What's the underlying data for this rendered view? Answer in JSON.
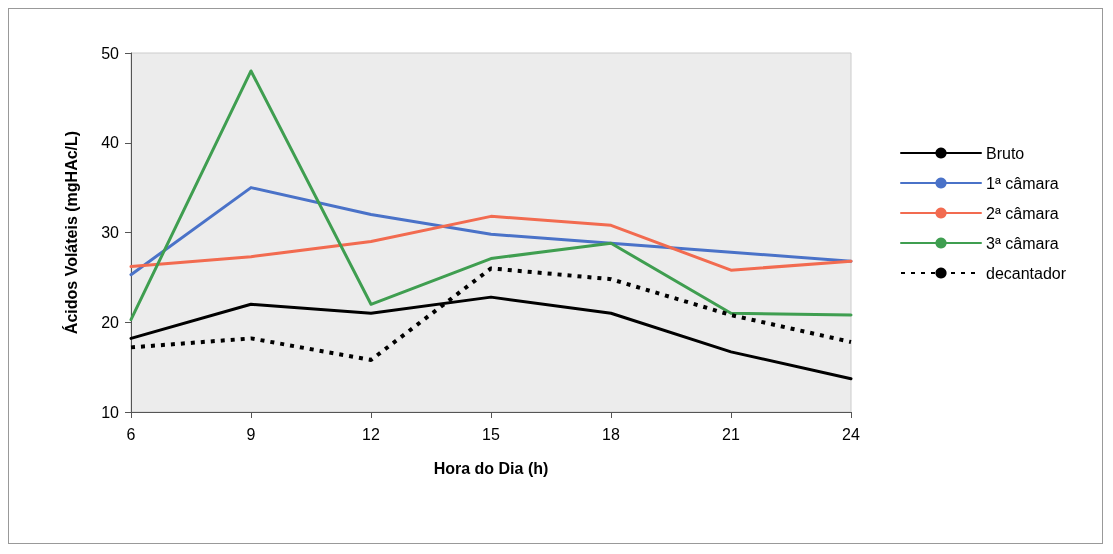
{
  "chart_data": {
    "type": "line",
    "xlabel": "Hora do Dia (h)",
    "ylabel": "Ácidos Voláteis (mgHAc/L)",
    "x": [
      6,
      9,
      12,
      15,
      18,
      21,
      24
    ],
    "xlim": [
      6,
      24
    ],
    "xticks": [
      6,
      9,
      12,
      15,
      18,
      21,
      24
    ],
    "ylim": [
      10,
      50
    ],
    "yticks": [
      10,
      20,
      30,
      40,
      50
    ],
    "grid": false,
    "legend": "right",
    "marker": "none",
    "series": [
      {
        "name": "Bruto",
        "color": "#000000",
        "line_style": "solid",
        "values": [
          18.2,
          22,
          21,
          22.8,
          21,
          16.7,
          13.7
        ]
      },
      {
        "name": "1ª câmara",
        "color": "#4a72c8",
        "line_style": "solid",
        "values": [
          25.3,
          35,
          32,
          29.8,
          28.8,
          27.8,
          26.8
        ]
      },
      {
        "name": "2ª câmara",
        "color": "#f26b50",
        "line_style": "solid",
        "values": [
          26.2,
          27.3,
          29,
          31.8,
          30.8,
          25.8,
          26.8
        ]
      },
      {
        "name": "3ª câmara",
        "color": "#3f9e50",
        "line_style": "solid",
        "values": [
          20.3,
          48,
          22,
          27.1,
          28.8,
          21,
          20.8
        ]
      },
      {
        "name": "decantador",
        "color": "#000000",
        "line_style": "dashed",
        "values": [
          17.2,
          18.2,
          15.8,
          26,
          24.8,
          20.8,
          17.8
        ]
      }
    ]
  }
}
